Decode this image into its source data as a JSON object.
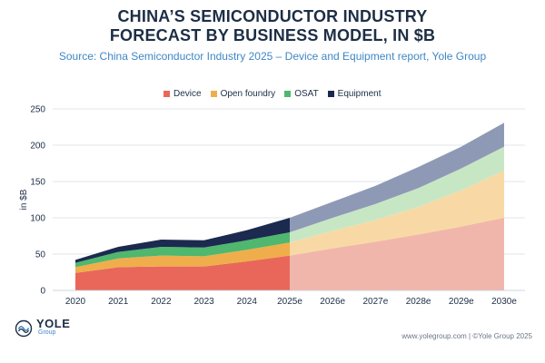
{
  "header": {
    "title_line1": "CHINA’S SEMICONDUCTOR INDUSTRY",
    "title_line2": "FORECAST BY BUSINESS MODEL, IN $B",
    "subtitle": "Source: China Semiconductor Industry 2025 – Device and Equipment report, Yole Group"
  },
  "legend": [
    {
      "label": "Device",
      "color": "#e8675a"
    },
    {
      "label": "Open foundry",
      "color": "#efae4b"
    },
    {
      "label": "OSAT",
      "color": "#4fb76e"
    },
    {
      "label": "Equipment",
      "color": "#1b2a4e"
    }
  ],
  "chart_data": {
    "type": "area",
    "stacked": true,
    "title": "CHINA’S SEMICONDUCTOR INDUSTRY FORECAST BY BUSINESS MODEL, IN $B",
    "ylabel": "in $B",
    "xlabel": "",
    "ylim": [
      0,
      250
    ],
    "yticks": [
      0,
      50,
      100,
      150,
      200,
      250
    ],
    "grid": true,
    "categories": [
      "2020",
      "2021",
      "2022",
      "2023",
      "2024",
      "2025e",
      "2026e",
      "2027e",
      "2028e",
      "2029e",
      "2030e"
    ],
    "actual_last_index": 5,
    "series": [
      {
        "name": "Device",
        "values": [
          24,
          32,
          33,
          33,
          40,
          48,
          58,
          67,
          77,
          88,
          100
        ]
      },
      {
        "name": "Open foundry",
        "values": [
          8,
          12,
          15,
          14,
          16,
          18,
          24,
          30,
          38,
          50,
          65
        ]
      },
      {
        "name": "OSAT",
        "values": [
          6,
          9,
          12,
          12,
          13,
          14,
          18,
          22,
          26,
          30,
          33
        ]
      },
      {
        "name": "Equipment",
        "values": [
          4,
          7,
          10,
          10,
          14,
          20,
          22,
          25,
          29,
          30,
          33
        ]
      }
    ],
    "faded_colors": [
      "#f1b6ab",
      "#f8d9a5",
      "#c7e7c4",
      "#8e9ab5"
    ]
  },
  "footer": {
    "logo_main": "YOLE",
    "logo_sub": "Group",
    "credits": "www.yolegroup.com | ©Yole Group 2025"
  }
}
